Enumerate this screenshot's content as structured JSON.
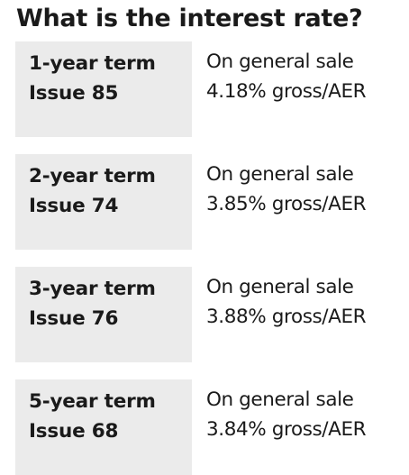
{
  "heading": "What is the interest rate?",
  "rates": [
    {
      "term": "1-year term",
      "issue": "Issue 85",
      "availability": "On general sale",
      "rate": "4.18% gross/AER"
    },
    {
      "term": "2-year term",
      "issue": "Issue 74",
      "availability": "On general sale",
      "rate": "3.85% gross/AER"
    },
    {
      "term": "3-year term",
      "issue": "Issue 76",
      "availability": "On general sale",
      "rate": "3.88% gross/AER"
    },
    {
      "term": "5-year term",
      "issue": "Issue 68",
      "availability": "On general sale",
      "rate": "3.84% gross/AER"
    }
  ]
}
